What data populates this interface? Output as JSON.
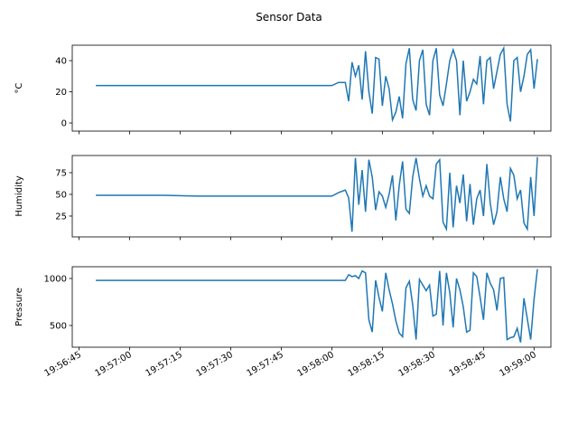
{
  "title": "Sensor Data",
  "chart_data": [
    {
      "type": "line",
      "ylabel": "°C",
      "color": "#1f77b4",
      "x": [
        "19:56:50",
        "19:57:00",
        "19:57:10",
        "19:57:20",
        "19:57:30",
        "19:57:40",
        "19:57:50",
        "19:58:00",
        "19:58:02",
        "19:58:04",
        "19:58:05",
        "19:58:06",
        "19:58:07",
        "19:58:08",
        "19:58:09",
        "19:58:10",
        "19:58:11",
        "19:58:12",
        "19:58:13",
        "19:58:14",
        "19:58:15",
        "19:58:16",
        "19:58:17",
        "19:58:18",
        "19:58:19",
        "19:58:20",
        "19:58:21",
        "19:58:22",
        "19:58:23",
        "19:58:24",
        "19:58:25",
        "19:58:26",
        "19:58:27",
        "19:58:28",
        "19:58:29",
        "19:58:30",
        "19:58:31",
        "19:58:32",
        "19:58:33",
        "19:58:34",
        "19:58:35",
        "19:58:36",
        "19:58:37",
        "19:58:38",
        "19:58:39",
        "19:58:40",
        "19:58:41",
        "19:58:42",
        "19:58:43",
        "19:58:44",
        "19:58:45",
        "19:58:46",
        "19:58:47",
        "19:58:48",
        "19:58:49",
        "19:58:50",
        "19:58:51",
        "19:58:52",
        "19:58:53",
        "19:58:54",
        "19:58:55",
        "19:58:56",
        "19:58:57",
        "19:58:58",
        "19:58:59",
        "19:59:00",
        "19:59:01"
      ],
      "values": [
        24,
        24,
        24,
        24,
        24,
        24,
        24,
        24,
        26,
        26,
        14,
        39,
        30,
        37,
        15,
        46,
        20,
        6,
        42,
        41,
        11,
        30,
        22,
        2,
        7,
        17,
        3,
        38,
        48,
        15,
        8,
        40,
        47,
        12,
        5,
        40,
        48,
        18,
        11,
        25,
        40,
        47,
        40,
        5,
        40,
        14,
        20,
        28,
        25,
        43,
        12,
        40,
        42,
        22,
        33,
        44,
        48,
        12,
        1,
        40,
        42,
        20,
        30,
        44,
        47,
        22,
        41
      ],
      "xlim": [
        "19:56:43",
        "19:59:05"
      ],
      "ylim": [
        -5.2,
        49.9
      ],
      "yticks": [
        0,
        20,
        40
      ]
    },
    {
      "type": "line",
      "ylabel": "Humidity",
      "color": "#1f77b4",
      "x": [
        "19:56:50",
        "19:57:00",
        "19:57:10",
        "19:57:20",
        "19:57:30",
        "19:57:40",
        "19:57:50",
        "19:58:00",
        "19:58:02",
        "19:58:04",
        "19:58:05",
        "19:58:06",
        "19:58:07",
        "19:58:08",
        "19:58:09",
        "19:58:10",
        "19:58:11",
        "19:58:12",
        "19:58:13",
        "19:58:14",
        "19:58:15",
        "19:58:16",
        "19:58:17",
        "19:58:18",
        "19:58:19",
        "19:58:20",
        "19:58:21",
        "19:58:22",
        "19:58:23",
        "19:58:24",
        "19:58:25",
        "19:58:26",
        "19:58:27",
        "19:58:28",
        "19:58:29",
        "19:58:30",
        "19:58:31",
        "19:58:32",
        "19:58:33",
        "19:58:34",
        "19:58:35",
        "19:58:36",
        "19:58:37",
        "19:58:38",
        "19:58:39",
        "19:58:40",
        "19:58:41",
        "19:58:42",
        "19:58:43",
        "19:58:44",
        "19:58:45",
        "19:58:46",
        "19:58:47",
        "19:58:48",
        "19:58:49",
        "19:58:50",
        "19:58:51",
        "19:58:52",
        "19:58:53",
        "19:58:54",
        "19:58:55",
        "19:58:56",
        "19:58:57",
        "19:58:58",
        "19:58:59",
        "19:59:00",
        "19:59:01"
      ],
      "values": [
        49,
        49,
        49,
        48,
        48,
        48,
        48,
        48,
        52,
        55,
        46,
        7,
        92,
        38,
        78,
        30,
        90,
        70,
        32,
        53,
        48,
        35,
        50,
        72,
        20,
        60,
        88,
        33,
        28,
        70,
        92,
        68,
        48,
        60,
        48,
        45,
        85,
        90,
        18,
        10,
        75,
        12,
        60,
        40,
        73,
        19,
        62,
        15,
        45,
        55,
        25,
        85,
        40,
        15,
        30,
        70,
        45,
        30,
        80,
        72,
        45,
        55,
        17,
        10,
        70,
        25,
        93
      ],
      "xlim": [
        "19:56:43",
        "19:59:05"
      ],
      "ylim": [
        1.0,
        94.8
      ],
      "yticks": [
        25,
        50,
        75
      ]
    },
    {
      "type": "line",
      "ylabel": "Pressure",
      "color": "#1f77b4",
      "x": [
        "19:56:50",
        "19:57:00",
        "19:57:10",
        "19:57:20",
        "19:57:30",
        "19:57:40",
        "19:57:50",
        "19:58:00",
        "19:58:02",
        "19:58:04",
        "19:58:05",
        "19:58:06",
        "19:58:07",
        "19:58:08",
        "19:58:09",
        "19:58:10",
        "19:58:11",
        "19:58:12",
        "19:58:13",
        "19:58:14",
        "19:58:15",
        "19:58:16",
        "19:58:17",
        "19:58:18",
        "19:58:19",
        "19:58:20",
        "19:58:21",
        "19:58:22",
        "19:58:23",
        "19:58:24",
        "19:58:25",
        "19:58:26",
        "19:58:27",
        "19:58:28",
        "19:58:29",
        "19:58:30",
        "19:58:31",
        "19:58:32",
        "19:58:33",
        "19:58:34",
        "19:58:35",
        "19:58:36",
        "19:58:37",
        "19:58:38",
        "19:58:39",
        "19:58:40",
        "19:58:41",
        "19:58:42",
        "19:58:43",
        "19:58:44",
        "19:58:45",
        "19:58:46",
        "19:58:47",
        "19:58:48",
        "19:58:49",
        "19:58:50",
        "19:58:51",
        "19:58:52",
        "19:58:53",
        "19:58:54",
        "19:58:55",
        "19:58:56",
        "19:58:57",
        "19:58:58",
        "19:58:59",
        "19:59:00",
        "19:59:01"
      ],
      "values": [
        980,
        980,
        980,
        980,
        980,
        980,
        980,
        980,
        980,
        980,
        1040,
        1020,
        1030,
        1000,
        1080,
        1060,
        560,
        430,
        980,
        800,
        650,
        1060,
        880,
        730,
        550,
        420,
        380,
        900,
        970,
        720,
        350,
        990,
        930,
        870,
        930,
        600,
        620,
        1080,
        500,
        1060,
        850,
        480,
        1000,
        880,
        700,
        430,
        450,
        1060,
        1020,
        800,
        560,
        1060,
        950,
        880,
        660,
        1000,
        1010,
        350,
        370,
        380,
        470,
        320,
        790,
        570,
        350,
        780,
        1100
      ],
      "xlim": [
        "19:56:43",
        "19:59:05"
      ],
      "ylim": [
        269,
        1125
      ],
      "yticks": [
        500,
        1000
      ],
      "xticks": [
        "19:56:45",
        "19:57:00",
        "19:57:15",
        "19:57:30",
        "19:57:45",
        "19:58:00",
        "19:58:15",
        "19:58:30",
        "19:58:45",
        "19:59:00"
      ]
    }
  ]
}
